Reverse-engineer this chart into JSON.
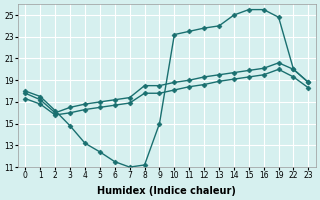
{
  "xlabel": "Humidex (Indice chaleur)",
  "background_color": "#d6f0ef",
  "grid_color": "#ffffff",
  "line_color": "#1a7070",
  "line1_x": [
    0,
    1,
    2,
    3,
    4,
    5,
    6,
    7,
    8,
    9,
    10,
    11,
    12,
    13,
    14,
    15,
    16,
    19,
    22,
    23
  ],
  "line1_y": [
    18.0,
    17.5,
    16.2,
    14.8,
    13.2,
    12.4,
    11.5,
    11.0,
    11.2,
    15.0,
    23.2,
    23.5,
    23.8,
    24.0,
    25.0,
    25.5,
    25.5,
    24.8,
    20.0,
    18.8
  ],
  "line2_x": [
    0,
    1,
    2,
    3,
    4,
    5,
    6,
    7,
    8,
    9,
    10,
    11,
    12,
    13,
    14,
    15,
    16,
    19,
    22,
    23
  ],
  "line2_y": [
    17.8,
    17.2,
    16.0,
    16.5,
    16.8,
    17.0,
    17.2,
    17.4,
    18.5,
    18.5,
    18.8,
    19.0,
    19.3,
    19.5,
    19.7,
    19.9,
    20.1,
    20.6,
    20.0,
    18.8
  ],
  "line3_x": [
    0,
    1,
    2,
    3,
    4,
    5,
    6,
    7,
    8,
    9,
    10,
    11,
    12,
    13,
    14,
    15,
    16,
    19,
    22,
    23
  ],
  "line3_y": [
    17.3,
    16.8,
    15.8,
    16.0,
    16.3,
    16.5,
    16.7,
    16.9,
    17.8,
    17.8,
    18.1,
    18.4,
    18.6,
    18.9,
    19.1,
    19.3,
    19.5,
    20.0,
    19.3,
    18.3
  ],
  "ylim": [
    11,
    26
  ],
  "xlim": [
    -0.5,
    23.5
  ],
  "yticks": [
    11,
    13,
    15,
    17,
    19,
    21,
    23,
    25
  ],
  "xtick_positions": [
    0,
    1,
    2,
    3,
    4,
    5,
    6,
    7,
    8,
    9,
    10,
    11,
    12,
    13,
    14,
    15,
    16,
    19,
    22,
    23
  ],
  "xtick_labels": [
    "0",
    "1",
    "2",
    "3",
    "4",
    "5",
    "6",
    "7",
    "8",
    "9",
    "10",
    "11",
    "12",
    "13",
    "14",
    "15",
    "16",
    "19",
    "22",
    "23"
  ],
  "marker": "D",
  "markersize": 2.5,
  "linewidth": 1.0
}
